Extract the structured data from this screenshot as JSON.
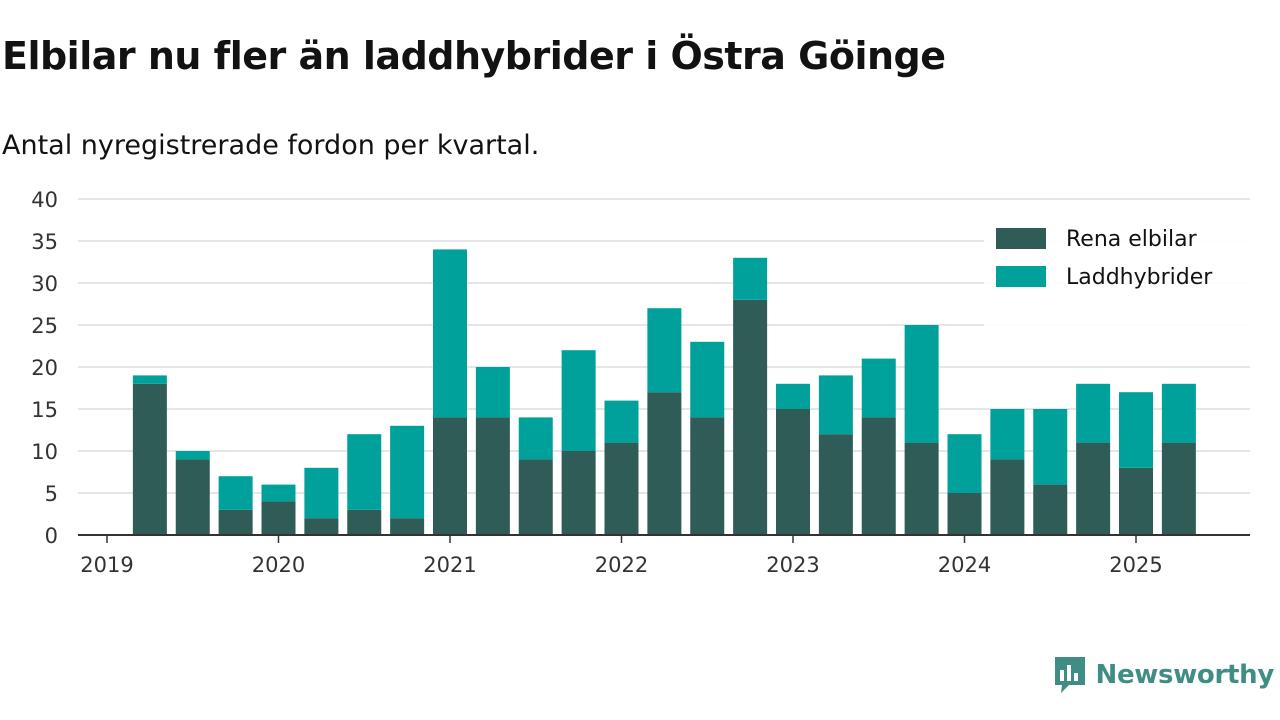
{
  "title": "Elbilar nu fler än laddhybrider i Östra Göinge",
  "subtitle": "Antal nyregistrerade fordon per kvartal.",
  "brand": {
    "name": "Newsworthy",
    "icon": "newsworthy-logo-icon"
  },
  "colors": {
    "rena_elbilar": "#2f5c57",
    "laddhybrider": "#00a19a",
    "grid": "#dddddd",
    "axis": "#333333",
    "brand": "#3f8d84"
  },
  "chart_data": {
    "type": "bar",
    "stacked": true,
    "categories": [
      "2019-Q2",
      "2019-Q3",
      "2019-Q4",
      "2020-Q1",
      "2020-Q2",
      "2020-Q3",
      "2020-Q4",
      "2021-Q1",
      "2021-Q2",
      "2021-Q3",
      "2021-Q4",
      "2022-Q1",
      "2022-Q2",
      "2022-Q3",
      "2022-Q4",
      "2023-Q1",
      "2023-Q2",
      "2023-Q3",
      "2023-Q4",
      "2024-Q1",
      "2024-Q2",
      "2024-Q3",
      "2024-Q4",
      "2025-Q1",
      "2025-Q2"
    ],
    "series": [
      {
        "name": "Rena elbilar",
        "values": [
          18,
          9,
          3,
          4,
          2,
          3,
          2,
          14,
          14,
          9,
          10,
          11,
          17,
          14,
          28,
          15,
          12,
          14,
          11,
          5,
          9,
          6,
          11,
          8,
          11
        ]
      },
      {
        "name": "Laddhybrider",
        "values": [
          1,
          1,
          4,
          2,
          6,
          9,
          11,
          20,
          6,
          5,
          12,
          5,
          10,
          9,
          5,
          3,
          7,
          7,
          14,
          7,
          6,
          9,
          7,
          9,
          7
        ]
      }
    ],
    "x_ticks": [
      "2019",
      "2020",
      "2021",
      "2022",
      "2023",
      "2024",
      "2025"
    ],
    "y_ticks": [
      "0",
      "5",
      "10",
      "15",
      "20",
      "25",
      "30",
      "35",
      "40"
    ],
    "ylim": [
      0,
      40
    ],
    "grid": true,
    "legend_position": "top-right"
  }
}
